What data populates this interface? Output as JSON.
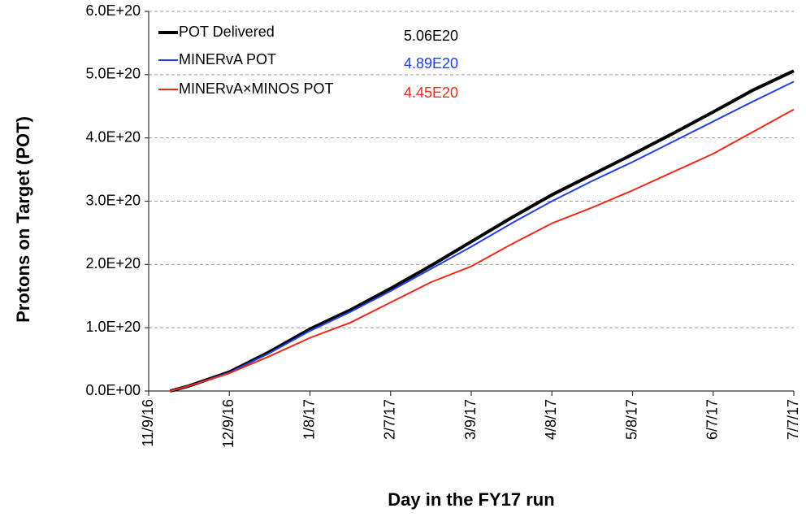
{
  "chart_data": {
    "type": "line",
    "xlabel": "Day in the FY17 run",
    "ylabel": "Protons  on Target (POT)",
    "x": [
      "2016-11-17",
      "2016-11-24",
      "2016-12-09",
      "2016-12-24",
      "2017-01-08",
      "2017-01-23",
      "2017-02-07",
      "2017-02-22",
      "2017-03-09",
      "2017-03-24",
      "2017-04-08",
      "2017-04-23",
      "2017-05-08",
      "2017-05-23",
      "2017-06-07",
      "2017-06-22",
      "2017-07-07"
    ],
    "series": [
      {
        "name": "POT Delivered",
        "color": "#000000",
        "width": 4,
        "values": [
          0,
          8e+18,
          3e+19,
          6.2e+19,
          9.8e+19,
          1.28e+20,
          1.62e+20,
          1.98e+20,
          2.36e+20,
          2.74e+20,
          3.1e+20,
          3.42e+20,
          3.74e+20,
          4.07e+20,
          4.41e+20,
          4.76e+20,
          5.06e+20
        ],
        "value_labels": [
          null,
          null,
          null,
          null,
          null,
          null,
          null,
          null,
          null,
          null,
          null,
          null,
          null,
          null,
          null,
          null,
          "5.06E20"
        ]
      },
      {
        "name": "MINERvA POT",
        "color": "#1f3ff0",
        "width": 2,
        "values": [
          0,
          8e+18,
          2.9e+19,
          6e+19,
          9.5e+19,
          1.25e+20,
          1.58e+20,
          1.93e+20,
          2.28e+20,
          2.65e+20,
          3e+20,
          3.32e+20,
          3.62e+20,
          3.94e+20,
          4.26e+20,
          4.58e+20,
          4.89e+20
        ],
        "value_labels": [
          null,
          null,
          null,
          null,
          null,
          null,
          null,
          null,
          null,
          null,
          null,
          null,
          null,
          null,
          null,
          null,
          "4.89E20"
        ]
      },
      {
        "name": "MINERvA×MINOS POT",
        "color": "#f02a1a",
        "width": 2,
        "values": [
          0,
          8e+18,
          2.8e+19,
          5.5e+19,
          8.4e+19,
          1.08e+20,
          1.4e+20,
          1.72e+20,
          1.97e+20,
          2.32e+20,
          2.65e+20,
          2.9e+20,
          3.17e+20,
          3.46e+20,
          3.75e+20,
          4.1e+20,
          4.45e+20
        ],
        "value_labels": [
          null,
          null,
          null,
          null,
          null,
          null,
          null,
          null,
          null,
          null,
          null,
          null,
          null,
          null,
          null,
          null,
          "4.45E20"
        ]
      }
    ],
    "xlim": [
      "2016-11-09",
      "2017-07-07"
    ],
    "xticks": [
      {
        "value": "2016-11-09",
        "label": "11/9/16"
      },
      {
        "value": "2016-12-09",
        "label": "12/9/16"
      },
      {
        "value": "2017-01-08",
        "label": "1/8/17"
      },
      {
        "value": "2017-02-07",
        "label": "2/7/17"
      },
      {
        "value": "2017-03-09",
        "label": "3/9/17"
      },
      {
        "value": "2017-04-08",
        "label": "4/8/17"
      },
      {
        "value": "2017-05-08",
        "label": "5/8/17"
      },
      {
        "value": "2017-06-07",
        "label": "6/7/17"
      },
      {
        "value": "2017-07-07",
        "label": "7/7/17"
      }
    ],
    "ylim": [
      0,
      6e+20
    ],
    "yticks": [
      {
        "value": 0,
        "label": "0.0E+00"
      },
      {
        "value": 1e+20,
        "label": "1.0E+20"
      },
      {
        "value": 2e+20,
        "label": "2.0E+20"
      },
      {
        "value": 3e+20,
        "label": "3.0E+20"
      },
      {
        "value": 4e+20,
        "label": "4.0E+20"
      },
      {
        "value": 5e+20,
        "label": "5.0E+20"
      },
      {
        "value": 6e+20,
        "label": "6.0E+20"
      }
    ],
    "grid": true,
    "legend": "upper left"
  }
}
